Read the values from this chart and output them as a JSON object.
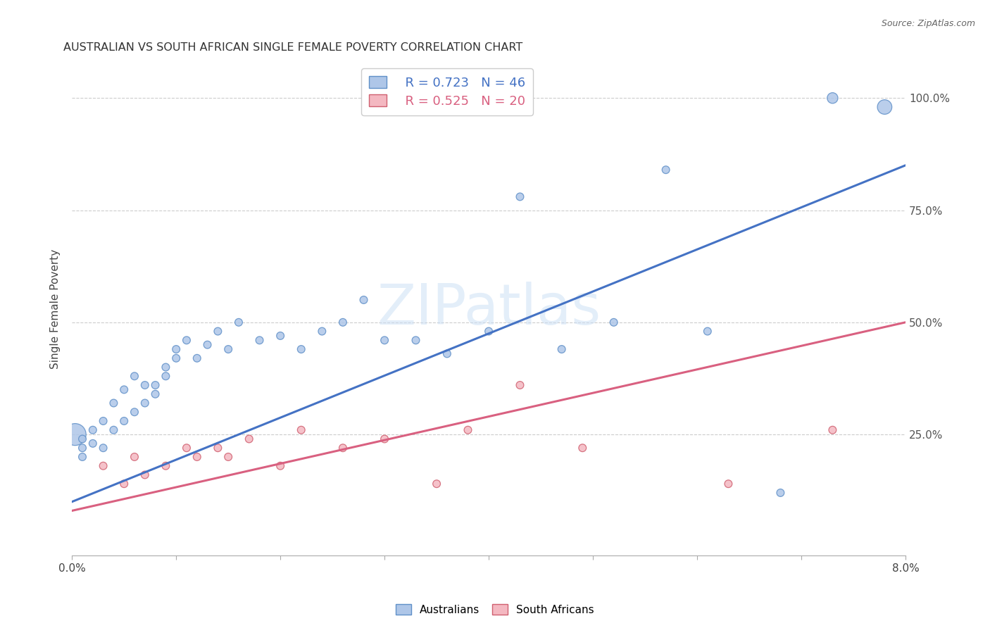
{
  "title": "AUSTRALIAN VS SOUTH AFRICAN SINGLE FEMALE POVERTY CORRELATION CHART",
  "source": "Source: ZipAtlas.com",
  "ylabel": "Single Female Poverty",
  "ytick_labels": [
    "25.0%",
    "50.0%",
    "75.0%",
    "100.0%"
  ],
  "ytick_values": [
    0.25,
    0.5,
    0.75,
    1.0
  ],
  "xlim": [
    0.0,
    0.08
  ],
  "ylim": [
    -0.02,
    1.08
  ],
  "watermark": "ZIPatlas",
  "legend_r1": "R = 0.723",
  "legend_n1": "N = 46",
  "legend_r2": "R = 0.525",
  "legend_n2": "N = 20",
  "blue_color": "#aec6e8",
  "pink_color": "#f4b8c1",
  "blue_edge_color": "#6090c8",
  "pink_edge_color": "#d06070",
  "blue_line_color": "#4472c4",
  "pink_line_color": "#d96080",
  "aus_x": [
    0.0003,
    0.001,
    0.001,
    0.001,
    0.002,
    0.002,
    0.003,
    0.003,
    0.004,
    0.004,
    0.005,
    0.005,
    0.006,
    0.006,
    0.007,
    0.007,
    0.008,
    0.008,
    0.009,
    0.009,
    0.01,
    0.01,
    0.011,
    0.012,
    0.013,
    0.014,
    0.015,
    0.016,
    0.018,
    0.02,
    0.022,
    0.024,
    0.026,
    0.028,
    0.03,
    0.033,
    0.036,
    0.04,
    0.043,
    0.047,
    0.052,
    0.057,
    0.061,
    0.068,
    0.073,
    0.078
  ],
  "aus_y": [
    0.25,
    0.22,
    0.24,
    0.2,
    0.23,
    0.26,
    0.22,
    0.28,
    0.26,
    0.32,
    0.28,
    0.35,
    0.3,
    0.38,
    0.32,
    0.36,
    0.34,
    0.36,
    0.38,
    0.4,
    0.42,
    0.44,
    0.46,
    0.42,
    0.45,
    0.48,
    0.44,
    0.5,
    0.46,
    0.47,
    0.44,
    0.48,
    0.5,
    0.55,
    0.46,
    0.46,
    0.43,
    0.48,
    0.78,
    0.44,
    0.5,
    0.84,
    0.48,
    0.12,
    1.0,
    0.98
  ],
  "aus_sizes": [
    500,
    60,
    60,
    60,
    60,
    60,
    60,
    60,
    60,
    60,
    60,
    60,
    60,
    60,
    60,
    60,
    60,
    60,
    60,
    60,
    60,
    60,
    60,
    60,
    60,
    60,
    60,
    60,
    60,
    60,
    60,
    60,
    60,
    60,
    60,
    60,
    60,
    60,
    60,
    60,
    60,
    60,
    60,
    60,
    120,
    220
  ],
  "sa_x": [
    0.003,
    0.005,
    0.006,
    0.007,
    0.009,
    0.011,
    0.012,
    0.014,
    0.015,
    0.017,
    0.02,
    0.022,
    0.026,
    0.03,
    0.035,
    0.038,
    0.043,
    0.049,
    0.063,
    0.073
  ],
  "sa_y": [
    0.18,
    0.14,
    0.2,
    0.16,
    0.18,
    0.22,
    0.2,
    0.22,
    0.2,
    0.24,
    0.18,
    0.26,
    0.22,
    0.24,
    0.14,
    0.26,
    0.36,
    0.22,
    0.14,
    0.26
  ],
  "sa_sizes": [
    60,
    60,
    60,
    60,
    60,
    60,
    60,
    60,
    60,
    60,
    60,
    60,
    60,
    60,
    60,
    60,
    60,
    60,
    60,
    60
  ]
}
